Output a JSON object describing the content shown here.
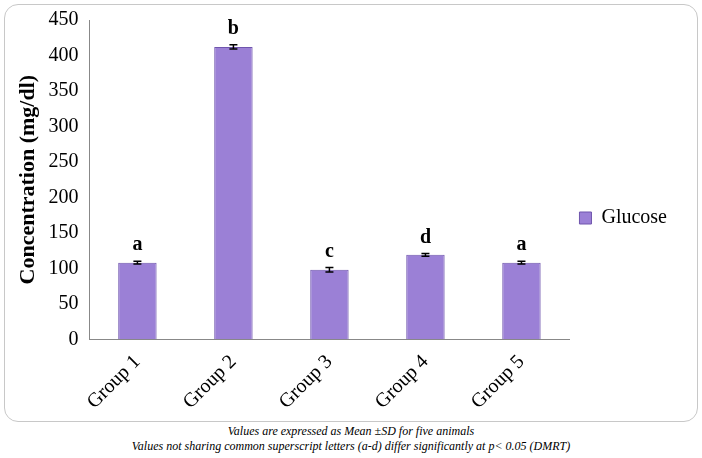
{
  "chart_data": {
    "type": "bar",
    "y_label": "Concentration (mg/dl)",
    "categories": [
      "Group 1",
      "Group 2",
      "Group 3",
      "Group 4",
      "Group 5"
    ],
    "series": [
      {
        "name": "Glucose",
        "color": "#9b80d6",
        "values": [
          108,
          412,
          98,
          119,
          108
        ],
        "errors": [
          2,
          3,
          3,
          2,
          2
        ]
      }
    ],
    "annotations": [
      "a",
      "b",
      "c",
      "d",
      "a"
    ],
    "ylim": [
      0,
      450
    ],
    "yticks": [
      0,
      50,
      100,
      150,
      200,
      250,
      300,
      350,
      400,
      450
    ],
    "grid": false,
    "legend": "right",
    "footnotes": [
      "Values are expressed as Mean ±SD for five animals",
      "Values not sharing common superscript letters (a-d) differ significantly at p< 0.05 (DMRT)"
    ]
  }
}
